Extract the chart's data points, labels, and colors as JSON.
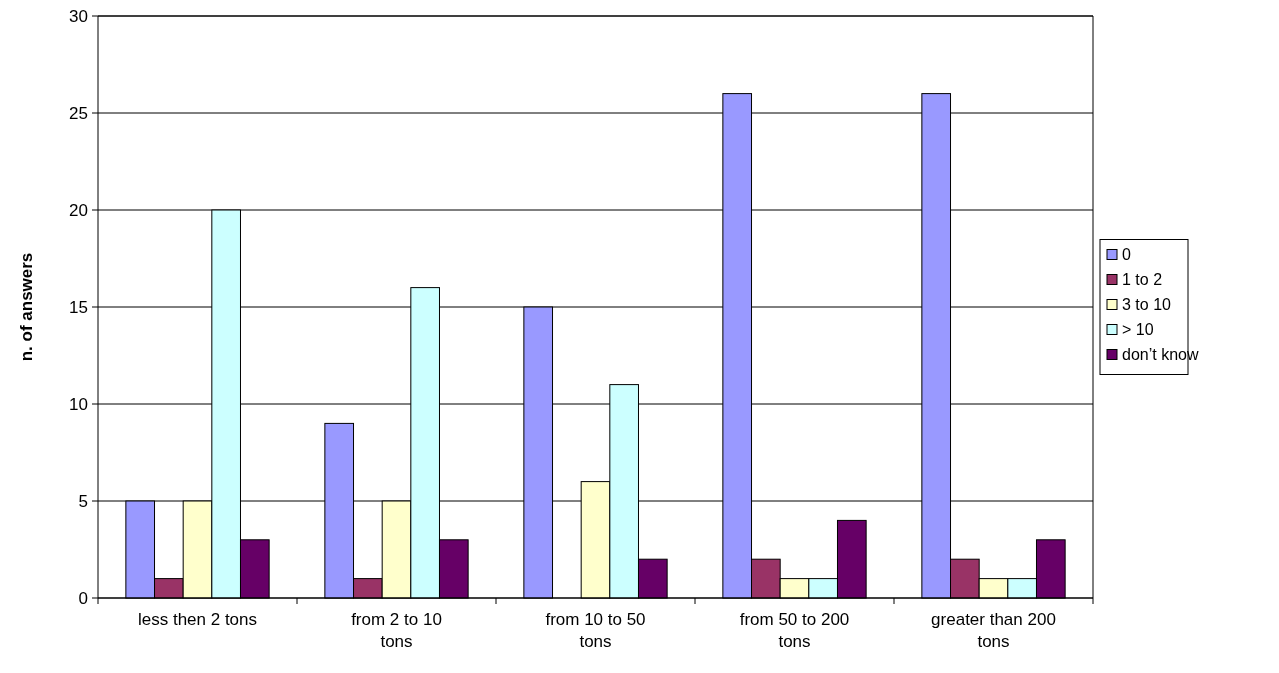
{
  "chart_data": {
    "type": "bar",
    "ylabel": "n. of answers",
    "categories": [
      "less then 2 tons",
      "from 2 to 10 tons",
      "from 10 to 50 tons",
      "from 50 to 200 tons",
      "greater than 200 tons"
    ],
    "series": [
      {
        "name": "0",
        "color": "#9999ff",
        "values": [
          5,
          9,
          15,
          26,
          26
        ]
      },
      {
        "name": "1 to 2",
        "color": "#993366",
        "values": [
          1,
          1,
          0,
          2,
          2
        ]
      },
      {
        "name": "3 to 10",
        "color": "#ffffcc",
        "values": [
          5,
          5,
          6,
          1,
          1
        ]
      },
      {
        "name": "> 10",
        "color": "#ccffff",
        "values": [
          20,
          16,
          11,
          1,
          1
        ]
      },
      {
        "name": "don’t know",
        "color": "#660066",
        "values": [
          3,
          3,
          2,
          4,
          3
        ]
      }
    ],
    "ylim": [
      0,
      30
    ],
    "yticks": [
      0,
      5,
      10,
      15,
      20,
      25,
      30
    ],
    "grid": "y",
    "legend": "right"
  }
}
